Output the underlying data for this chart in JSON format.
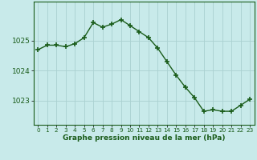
{
  "hours": [
    0,
    1,
    2,
    3,
    4,
    5,
    6,
    7,
    8,
    9,
    10,
    11,
    12,
    13,
    14,
    15,
    16,
    17,
    18,
    19,
    20,
    21,
    22,
    23
  ],
  "pressure": [
    1024.7,
    1024.85,
    1024.85,
    1024.8,
    1024.9,
    1025.1,
    1025.6,
    1025.45,
    1025.55,
    1025.7,
    1025.5,
    1025.3,
    1025.1,
    1024.75,
    1024.3,
    1023.85,
    1023.45,
    1023.1,
    1022.65,
    1022.7,
    1022.65,
    1022.65,
    1022.85,
    1023.05
  ],
  "line_color": "#1a5c1a",
  "marker_color": "#1a5c1a",
  "bg_color": "#c8eaea",
  "grid_color": "#aad0d0",
  "axis_label_color": "#1a5c1a",
  "tick_color": "#1a5c1a",
  "xlabel": "Graphe pression niveau de la mer (hPa)",
  "yticks": [
    1023,
    1024,
    1025
  ],
  "ylim": [
    1022.2,
    1026.3
  ],
  "xlim": [
    -0.5,
    23.5
  ]
}
